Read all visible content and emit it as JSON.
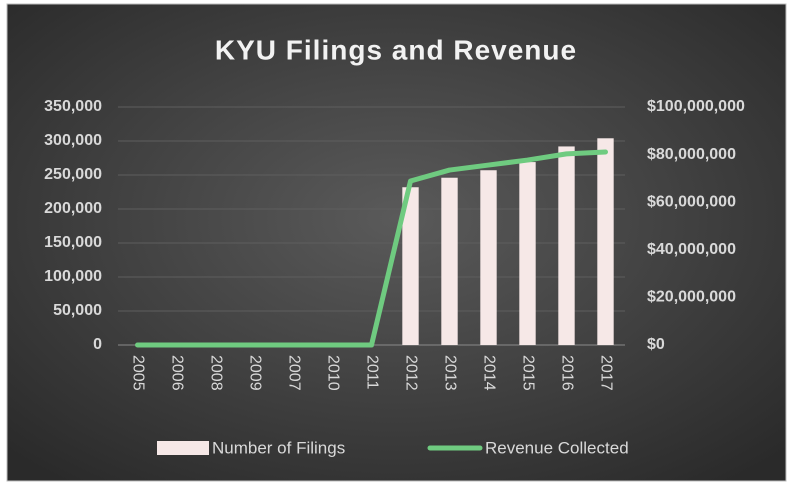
{
  "chart_data": {
    "type": "bar_line",
    "title": "KYU Filings and Revenue",
    "categories": [
      "2005",
      "2006",
      "2008",
      "2009",
      "2007",
      "2010",
      "2011",
      "2012",
      "2013",
      "2014",
      "2015",
      "2016",
      "2017"
    ],
    "series": [
      {
        "name": "Number of Filings",
        "type": "bar",
        "color": "#f6e8e7",
        "values": [
          0,
          0,
          0,
          0,
          0,
          0,
          0,
          232000,
          246000,
          257000,
          269000,
          292000,
          304000
        ]
      },
      {
        "name": "Revenue Collected",
        "type": "line",
        "axis": "y2",
        "color": "#6fcb80",
        "values": [
          0,
          0,
          0,
          0,
          0,
          0,
          0,
          68900000,
          73500000,
          75600000,
          77700000,
          80300000,
          81100000
        ]
      }
    ],
    "ylim": [
      0,
      350000
    ],
    "yticks": [
      0,
      {
        "value": 50000,
        "label": "50,000"
      },
      {
        "value": 100000,
        "label": "100,000"
      },
      {
        "value": 150000,
        "label": "150,000"
      },
      {
        "value": 200000,
        "label": "200,000"
      },
      {
        "value": 250000,
        "label": "250,000"
      },
      {
        "value": 300000,
        "label": "300,000"
      },
      {
        "value": 350000,
        "label": "350,000"
      }
    ],
    "y2lim": [
      0,
      100000000
    ],
    "y2ticks": [
      {
        "value": 0,
        "label": "$0"
      },
      {
        "value": 20000000,
        "label": "$20,000,000"
      },
      {
        "value": 40000000,
        "label": "$40,000,000"
      },
      {
        "value": 60000000,
        "label": "$60,000,000"
      },
      {
        "value": 80000000,
        "label": "$80,000,000"
      },
      {
        "value": 100000000,
        "label": "$100,000,000"
      }
    ],
    "grid": true,
    "legend": "bottom"
  }
}
